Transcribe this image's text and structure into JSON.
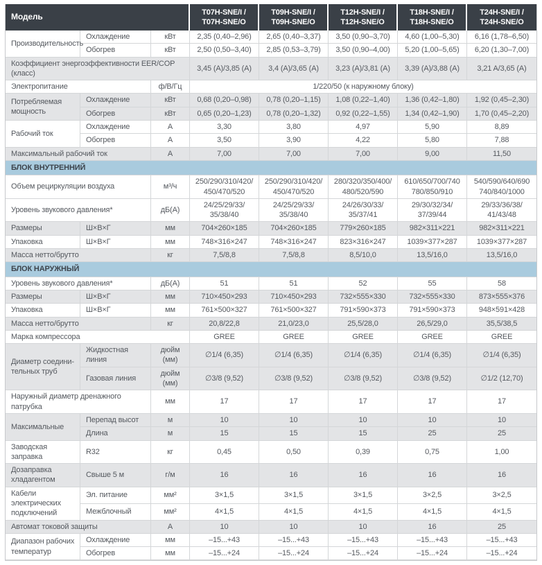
{
  "colors": {
    "header_bg": "#3a4047",
    "header_text": "#ffffff",
    "section_bg": "#a9cbde",
    "section_text": "#3d444c",
    "row_shade": "#e3e4e6",
    "border": "#c7c9cc",
    "border_light": "#d4d6d8",
    "text": "#55595f"
  },
  "table": {
    "model_label": "Модель",
    "columns": [
      "T07H-SNE/I /\nT07H-SNE/O",
      "T09H-SNE/I /\nT09H-SNE/O",
      "T12H-SNE/I /\nT12H-SNE/O",
      "T18H-SNE/I /\nT18H-SNE/O",
      "T24H-SNE/I /\nT24H-SNE/O"
    ],
    "sections": [
      {
        "header": null,
        "rows": [
          {
            "label": "Производительность",
            "label_rowspan": 2,
            "sub": "Охлаждение",
            "unit": "кВт",
            "shaded": false,
            "values": [
              "2,35 (0,40–2,96)",
              "2,65 (0,40–3,37)",
              "3,50 (0,90–3,70)",
              "4,60 (1,00–5,30)",
              "6,16 (1,78–6,50)"
            ]
          },
          {
            "sub": "Обогрев",
            "unit": "кВт",
            "shaded": false,
            "values": [
              "2,50 (0,50–3,40)",
              "2,85 (0,53–3,79)",
              "3,50 (0,90–4,00)",
              "5,20 (1,00–5,65)",
              "6,20 (1,30–7,00)"
            ]
          },
          {
            "label": "Коэффициент энергоэффективности EER/COP (класс)",
            "label_colspan": 3,
            "shaded": true,
            "values": [
              "3,45 (A)/3,85 (A)",
              "3,4 (A)/3,65 (A)",
              "3,23 (A)/3,81 (A)",
              "3,39 (A)/3,88 (A)",
              "3,21 A/3,65 (A)"
            ]
          },
          {
            "label": "Электропитание",
            "label_colspan": 2,
            "unit": "ф/В/Гц",
            "shaded": false,
            "value_span": "1/220/50 (к наружному блоку)"
          },
          {
            "label": "Потребляемая\nмощность",
            "label_rowspan": 2,
            "sub": "Охлаждение",
            "unit": "кВт",
            "shaded": true,
            "values": [
              "0,68 (0,20–0,98)",
              "0,78 (0,20–1,15)",
              "1,08 (0,22–1,40)",
              "1,36 (0,42–1,80)",
              "1,92 (0,45–2,30)"
            ]
          },
          {
            "sub": "Обогрев",
            "unit": "кВт",
            "shaded": true,
            "values": [
              "0,65 (0,20–1,23)",
              "0,78 (0,20–1,32)",
              "0,92 (0,22–1,55)",
              "1,34 (0,42–1,90)",
              "1,70 (0,45–2,20)"
            ]
          },
          {
            "label": "Рабочий ток",
            "label_rowspan": 2,
            "sub": "Охлаждение",
            "unit": "А",
            "shaded": false,
            "values": [
              "3,30",
              "3,80",
              "4,97",
              "5,90",
              "8,89"
            ]
          },
          {
            "sub": "Обогрев",
            "unit": "А",
            "shaded": false,
            "values": [
              "3,50",
              "3,90",
              "4,22",
              "5,80",
              "7,88"
            ]
          },
          {
            "label": "Максимальный рабочий ток",
            "label_colspan": 2,
            "unit": "А",
            "shaded": true,
            "values": [
              "7,00",
              "7,00",
              "7,00",
              "9,00",
              "11,50"
            ]
          }
        ]
      },
      {
        "header": "БЛОК ВНУТРЕННИЙ",
        "rows": [
          {
            "label": "Объем рециркуляции воздуха",
            "label_colspan": 2,
            "unit": "м³/ч",
            "shaded": false,
            "values": [
              "250/290/310/420/\n450/470/520",
              "250/290/310/420/\n450/470/520",
              "280/320/350/400/\n480/520/590",
              "610/650/700/740\n780/850/910",
              "540/590/640/690\n740/840/1000"
            ]
          },
          {
            "label": "Уровень звукового давления*",
            "label_colspan": 2,
            "unit": "дБ(А)",
            "shaded": false,
            "values": [
              "24/25/29/33/\n35/38/40",
              "24/25/29/33/\n35/38/40",
              "24/26/30/33/\n35/37/41",
              "29/30/32/34/\n37/39/44",
              "29/33/36/38/\n41/43/48"
            ]
          },
          {
            "label": "Размеры",
            "sub": "Ш×В×Г",
            "unit": "мм",
            "shaded": true,
            "values": [
              "704×260×185",
              "704×260×185",
              "779×260×185",
              "982×311×221",
              "982×311×221"
            ]
          },
          {
            "label": "Упаковка",
            "sub": "Ш×В×Г",
            "unit": "мм",
            "shaded": false,
            "values": [
              "748×316×247",
              "748×316×247",
              "823×316×247",
              "1039×377×287",
              "1039×377×287"
            ]
          },
          {
            "label": "Масса нетто/брутто",
            "label_colspan": 2,
            "unit": "кг",
            "shaded": true,
            "values": [
              "7,5/8,8",
              "7,5/8,8",
              "8,5/10,0",
              "13,5/16,0",
              "13,5/16,0"
            ]
          }
        ]
      },
      {
        "header": "БЛОК НАРУЖНЫЙ",
        "rows": [
          {
            "label": "Уровень звукового давления*",
            "label_colspan": 2,
            "unit": "дБ(А)",
            "shaded": false,
            "values": [
              "51",
              "51",
              "52",
              "55",
              "58"
            ]
          },
          {
            "label": "Размеры",
            "sub": "Ш×В×Г",
            "unit": "мм",
            "shaded": true,
            "values": [
              "710×450×293",
              "710×450×293",
              "732×555×330",
              "732×555×330",
              "873×555×376"
            ]
          },
          {
            "label": "Упаковка",
            "sub": "Ш×В×Г",
            "unit": "мм",
            "shaded": false,
            "values": [
              "761×500×327",
              "761×500×327",
              "791×590×373",
              "791×590×373",
              "948×591×428"
            ]
          },
          {
            "label": "Масса нетто/брутто",
            "label_colspan": 2,
            "unit": "кг",
            "shaded": true,
            "values": [
              "20,8/22,8",
              "21,0/23,0",
              "25,5/28,0",
              "26,5/29,0",
              "35,5/38,5"
            ]
          },
          {
            "label": "Марка компрессора",
            "label_colspan": 3,
            "shaded": false,
            "values": [
              "GREE",
              "GREE",
              "GREE",
              "GREE",
              "GREE"
            ]
          },
          {
            "label": "Диаметр соедини-\nтельных труб",
            "label_rowspan": 2,
            "sub": "Жидкостная линия",
            "unit": "дюйм (мм)",
            "shaded": true,
            "values": [
              "∅1/4 (6,35)",
              "∅1/4 (6,35)",
              "∅1/4 (6,35)",
              "∅1/4 (6,35)",
              "∅1/4 (6,35)"
            ]
          },
          {
            "sub": "Газовая линия",
            "unit": "дюйм (мм)",
            "shaded": true,
            "values": [
              "∅3/8 (9,52)",
              "∅3/8 (9,52)",
              "∅3/8 (9,52)",
              "∅3/8 (9,52)",
              "∅1/2 (12,70)"
            ]
          },
          {
            "label": "Наружный диаметр дренажного патрубка",
            "label_colspan": 2,
            "unit": "мм",
            "shaded": false,
            "values": [
              "17",
              "17",
              "17",
              "17",
              "17"
            ]
          },
          {
            "label": "Максимальные",
            "label_rowspan": 2,
            "sub": "Перепад высот",
            "unit": "м",
            "shaded": true,
            "values": [
              "10",
              "10",
              "10",
              "10",
              "10"
            ]
          },
          {
            "sub": "Длина",
            "unit": "м",
            "shaded": true,
            "values": [
              "15",
              "15",
              "15",
              "25",
              "25"
            ]
          },
          {
            "label": "Заводская заправка",
            "sub": "R32",
            "unit": "кг",
            "shaded": false,
            "values": [
              "0,45",
              "0,50",
              "0,39",
              "0,75",
              "1,00"
            ]
          },
          {
            "label": "Дозаправка\nхладагентом",
            "sub": "Свыше 5 м",
            "unit": "г/м",
            "shaded": true,
            "values": [
              "16",
              "16",
              "16",
              "16",
              "16"
            ]
          },
          {
            "label": "Кабели\nэлектрических\nподключений",
            "label_rowspan": 2,
            "sub": "Эл. питание",
            "unit": "мм²",
            "shaded": false,
            "values": [
              "3×1,5",
              "3×1,5",
              "3×1,5",
              "3×2,5",
              "3×2,5"
            ]
          },
          {
            "sub": "Межблочный",
            "unit": "мм²",
            "shaded": false,
            "values": [
              "4×1,5",
              "4×1,5",
              "4×1,5",
              "4×1,5",
              "4×1,5"
            ]
          },
          {
            "label": "Автомат токовой защиты",
            "label_colspan": 2,
            "unit": "А",
            "shaded": true,
            "values": [
              "10",
              "10",
              "10",
              "16",
              "25"
            ]
          },
          {
            "label": "Диапазон рабочих\nтемператур",
            "label_rowspan": 2,
            "sub": "Охлаждение",
            "unit": "мм",
            "shaded": false,
            "values": [
              "–15...+43",
              "–15...+43",
              "–15...+43",
              "–15...+43",
              "–15...+43"
            ]
          },
          {
            "sub": "Обогрев",
            "unit": "мм",
            "shaded": false,
            "values": [
              "–15...+24",
              "–15...+24",
              "–15...+24",
              "–15...+24",
              "–15...+24"
            ]
          }
        ]
      }
    ]
  }
}
